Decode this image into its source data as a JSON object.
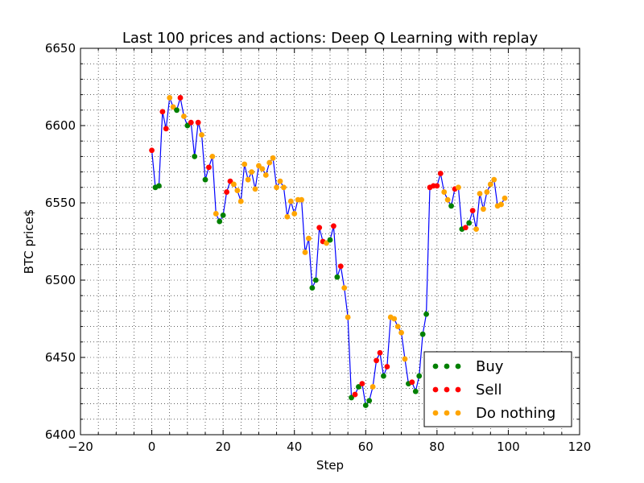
{
  "chart_data": {
    "type": "scatter",
    "title": "Last 100 prices and actions: Deep Q Learning with replay",
    "xlabel": "Step",
    "ylabel": "BTC price$",
    "xlim": [
      -20,
      120
    ],
    "ylim": [
      6400,
      6650
    ],
    "xticks": [
      -20,
      0,
      20,
      40,
      60,
      80,
      100,
      120
    ],
    "yticks": [
      6400,
      6450,
      6500,
      6550,
      6600,
      6650
    ],
    "grid": true,
    "grid_style": "dotted",
    "legend_position": "lower-right",
    "price_line_color": "#0000ff",
    "prices": [
      6584,
      6560,
      6561,
      6609,
      6598,
      6618,
      6612,
      6610,
      6618,
      6606,
      6600,
      6602,
      6580,
      6602,
      6594,
      6565,
      6573,
      6580,
      6543,
      6538,
      6542,
      6557,
      6564,
      6562,
      6558,
      6551,
      6575,
      6565,
      6570,
      6559,
      6574,
      6572,
      6568,
      6576,
      6579,
      6560,
      6564,
      6560,
      6541,
      6551,
      6543,
      6552,
      6552,
      6518,
      6527,
      6495,
      6500,
      6534,
      6525,
      6524,
      6526,
      6535,
      6502,
      6509,
      6495,
      6476,
      6424,
      6426,
      6431,
      6433,
      6419,
      6422,
      6431,
      6448,
      6453,
      6438,
      6444,
      6476,
      6475,
      6470,
      6466,
      6449,
      6433,
      6434,
      6428,
      6438,
      6465,
      6478,
      6560,
      6561,
      6561,
      6569,
      6557,
      6552,
      6548,
      6559,
      6560,
      6533,
      6534,
      6537,
      6545,
      6533,
      6556,
      6546,
      6557,
      6562,
      6565,
      6548,
      6549,
      6553
    ],
    "actions": [
      "sell",
      "buy",
      "buy",
      "sell",
      "sell",
      "nothing",
      "nothing",
      "buy",
      "sell",
      "nothing",
      "buy",
      "sell",
      "buy",
      "sell",
      "nothing",
      "buy",
      "sell",
      "nothing",
      "nothing",
      "buy",
      "buy",
      "sell",
      "sell",
      "nothing",
      "nothing",
      "nothing",
      "nothing",
      "nothing",
      "nothing",
      "nothing",
      "nothing",
      "nothing",
      "nothing",
      "nothing",
      "nothing",
      "nothing",
      "nothing",
      "nothing",
      "nothing",
      "nothing",
      "nothing",
      "nothing",
      "nothing",
      "nothing",
      "nothing",
      "buy",
      "buy",
      "sell",
      "sell",
      "nothing",
      "buy",
      "sell",
      "buy",
      "sell",
      "nothing",
      "nothing",
      "buy",
      "sell",
      "buy",
      "sell",
      "buy",
      "buy",
      "nothing",
      "sell",
      "sell",
      "buy",
      "sell",
      "nothing",
      "nothing",
      "nothing",
      "nothing",
      "nothing",
      "buy",
      "sell",
      "buy",
      "buy",
      "buy",
      "buy",
      "sell",
      "sell",
      "sell",
      "sell",
      "nothing",
      "nothing",
      "buy",
      "sell",
      "nothing",
      "buy",
      "sell",
      "buy",
      "sell",
      "nothing",
      "nothing",
      "nothing",
      "nothing",
      "nothing",
      "nothing",
      "nothing",
      "nothing",
      "nothing"
    ],
    "series": [
      {
        "name": "Buy",
        "action": "buy",
        "color": "#008000"
      },
      {
        "name": "Sell",
        "action": "sell",
        "color": "#ff0000"
      },
      {
        "name": "Do nothing",
        "action": "nothing",
        "color": "#ffa500"
      }
    ]
  }
}
